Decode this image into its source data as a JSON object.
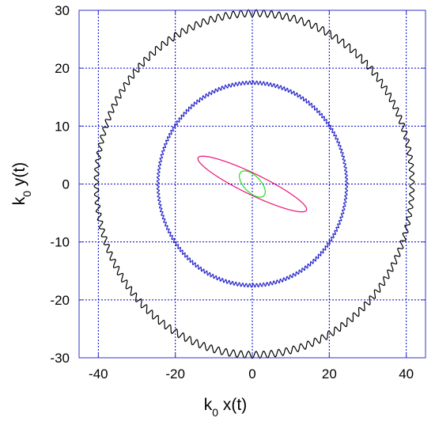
{
  "chart_data": {
    "type": "line",
    "title": "",
    "xlabel": {
      "main": "k",
      "sub": "0",
      "rest": " x(t)"
    },
    "ylabel": {
      "main": "k",
      "sub": "0",
      "rest": " y(t)"
    },
    "xlim": [
      -45,
      45
    ],
    "ylim": [
      -30,
      30
    ],
    "xticks": [
      -40,
      -20,
      0,
      20,
      40
    ],
    "yticks": [
      -30,
      -20,
      -10,
      0,
      10,
      20,
      30
    ],
    "grid": true,
    "legend": "none",
    "series": [
      {
        "shape": "ellipse",
        "color": "#000000",
        "center": [
          0.5,
          0
        ],
        "semi_axes": [
          41,
          29.5
        ],
        "rotation_deg": 0,
        "wobble_amplitude": 0.6,
        "wobble_count": 130
      },
      {
        "shape": "ellipse",
        "color": "#2222cc",
        "center": [
          0,
          0
        ],
        "semi_axes": [
          24.5,
          17.5
        ],
        "rotation_deg": 0,
        "wobble_amplitude": 0.3,
        "wobble_count": 170
      },
      {
        "shape": "ellipse",
        "color": "#ee1177",
        "center": [
          0,
          0
        ],
        "semi_axes": [
          14.8,
          1.9
        ],
        "rotation_deg": -17.5,
        "wobble_amplitude": 0,
        "wobble_count": 0
      },
      {
        "shape": "ellipse",
        "color": "#22dd22",
        "center": [
          0,
          0
        ],
        "semi_axes": [
          3.7,
          1.65
        ],
        "rotation_deg": -28,
        "wobble_amplitude": 0,
        "wobble_count": 0
      }
    ]
  }
}
